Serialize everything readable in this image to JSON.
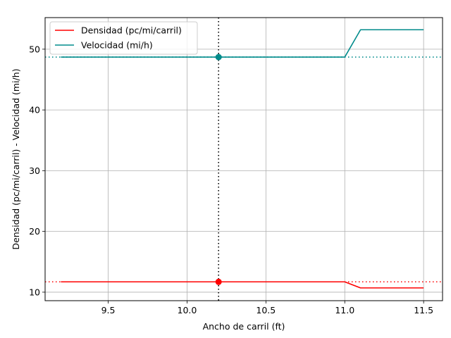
{
  "chart_data": {
    "type": "line",
    "title": "",
    "xlabel": "Ancho de carril (ft)",
    "ylabel": "Densidad (pc/mi/carril) - Velocidad (mi/h)",
    "xlim": [
      9.1,
      11.62
    ],
    "ylim": [
      8.6,
      55.2
    ],
    "xticks": [
      9.5,
      10.0,
      10.5,
      11.0,
      11.5
    ],
    "yticks": [
      10,
      20,
      30,
      40,
      50
    ],
    "grid": true,
    "legend_position": "top-left",
    "series": [
      {
        "name": "Densidad (pc/mi/carril)",
        "color": "#ff0000",
        "x": [
          9.2,
          9.3,
          9.4,
          9.5,
          9.6,
          9.7,
          9.8,
          9.9,
          10.0,
          10.1,
          10.2,
          10.3,
          10.4,
          10.5,
          10.6,
          10.7,
          10.8,
          10.9,
          11.0,
          11.1,
          11.2,
          11.3,
          11.4,
          11.5
        ],
        "y": [
          11.7,
          11.7,
          11.7,
          11.7,
          11.7,
          11.7,
          11.7,
          11.7,
          11.7,
          11.7,
          11.7,
          11.7,
          11.7,
          11.7,
          11.7,
          11.7,
          11.7,
          11.7,
          11.7,
          10.7,
          10.7,
          10.7,
          10.7,
          10.7
        ]
      },
      {
        "name": "Velocidad (mi/h)",
        "color": "#008b8b",
        "x": [
          9.2,
          9.3,
          9.4,
          9.5,
          9.6,
          9.7,
          9.8,
          9.9,
          10.0,
          10.1,
          10.2,
          10.3,
          10.4,
          10.5,
          10.6,
          10.7,
          10.8,
          10.9,
          11.0,
          11.1,
          11.2,
          11.3,
          11.4,
          11.5
        ],
        "y": [
          48.7,
          48.7,
          48.7,
          48.7,
          48.7,
          48.7,
          48.7,
          48.7,
          48.7,
          48.7,
          48.7,
          48.7,
          48.7,
          48.7,
          48.7,
          48.7,
          48.7,
          48.7,
          48.7,
          53.2,
          53.2,
          53.2,
          53.2,
          53.2
        ]
      }
    ],
    "reference_lines": [
      {
        "orientation": "vertical",
        "value": 10.2,
        "color": "#000000",
        "style": "dotted"
      },
      {
        "orientation": "horizontal",
        "value": 11.7,
        "color": "#ff0000",
        "style": "dotted"
      },
      {
        "orientation": "horizontal",
        "value": 48.7,
        "color": "#008b8b",
        "style": "dotted"
      }
    ],
    "markers": [
      {
        "x": 10.2,
        "y": 11.7,
        "color": "#ff0000"
      },
      {
        "x": 10.2,
        "y": 48.7,
        "color": "#008b8b"
      }
    ]
  }
}
